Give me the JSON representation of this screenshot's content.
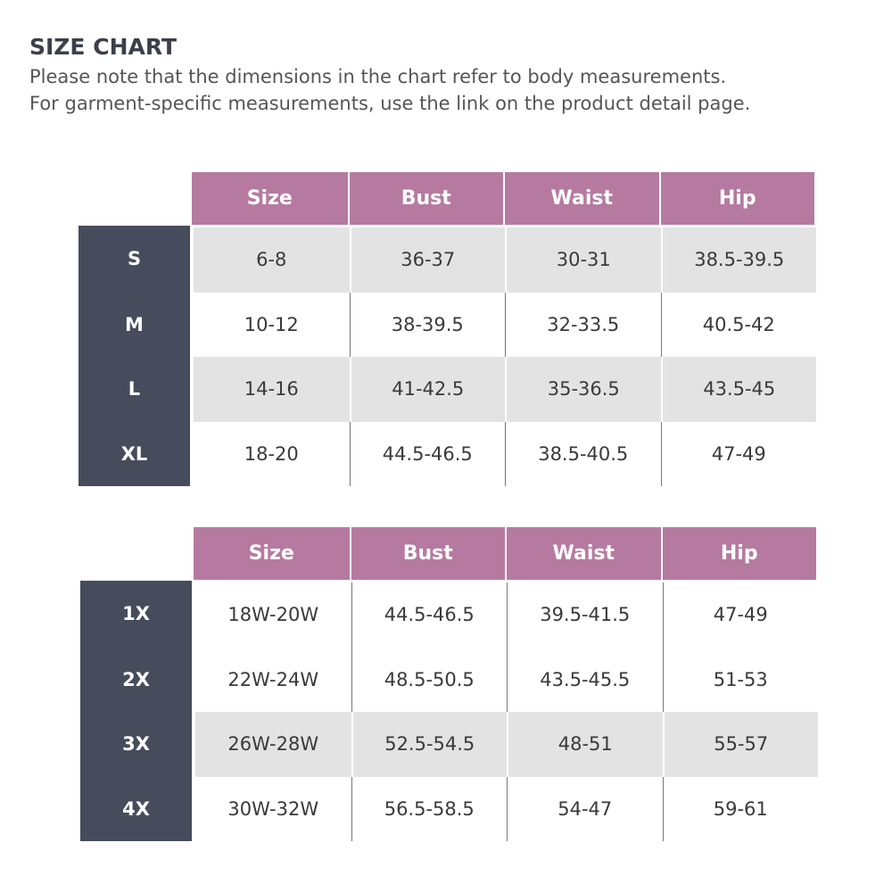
{
  "header": {
    "title": "SIZE CHART",
    "notes": [
      "Please note that the dimensions in the chart refer to body measurements.",
      "For garment-specific measurements, use the link on the product detail page."
    ]
  },
  "tables": [
    {
      "columns": [
        "Size",
        "Bust",
        "Waist",
        "Hip"
      ],
      "rows": [
        {
          "label": "S",
          "cells": [
            "6-8",
            "36-37",
            "30-31",
            "38.5-39.5"
          ]
        },
        {
          "label": "M",
          "cells": [
            "10-12",
            "38-39.5",
            "32-33.5",
            "40.5-42"
          ]
        },
        {
          "label": "L",
          "cells": [
            "14-16",
            "41-42.5",
            "35-36.5",
            "43.5-45"
          ]
        },
        {
          "label": "XL",
          "cells": [
            "18-20",
            "44.5-46.5",
            "38.5-40.5",
            "47-49"
          ]
        }
      ]
    },
    {
      "columns": [
        "Size",
        "Bust",
        "Waist",
        "Hip"
      ],
      "rows": [
        {
          "label": "1X",
          "cells": [
            "18W-20W",
            "44.5-46.5",
            "39.5-41.5",
            "47-49"
          ]
        },
        {
          "label": "2X",
          "cells": [
            "22W-24W",
            "48.5-50.5",
            "43.5-45.5",
            "51-53"
          ]
        },
        {
          "label": "3X",
          "cells": [
            "26W-28W",
            "52.5-54.5",
            "48-51",
            "55-57"
          ]
        },
        {
          "label": "4X",
          "cells": [
            "30W-32W",
            "56.5-58.5",
            "54-47",
            "59-61"
          ]
        }
      ]
    }
  ]
}
